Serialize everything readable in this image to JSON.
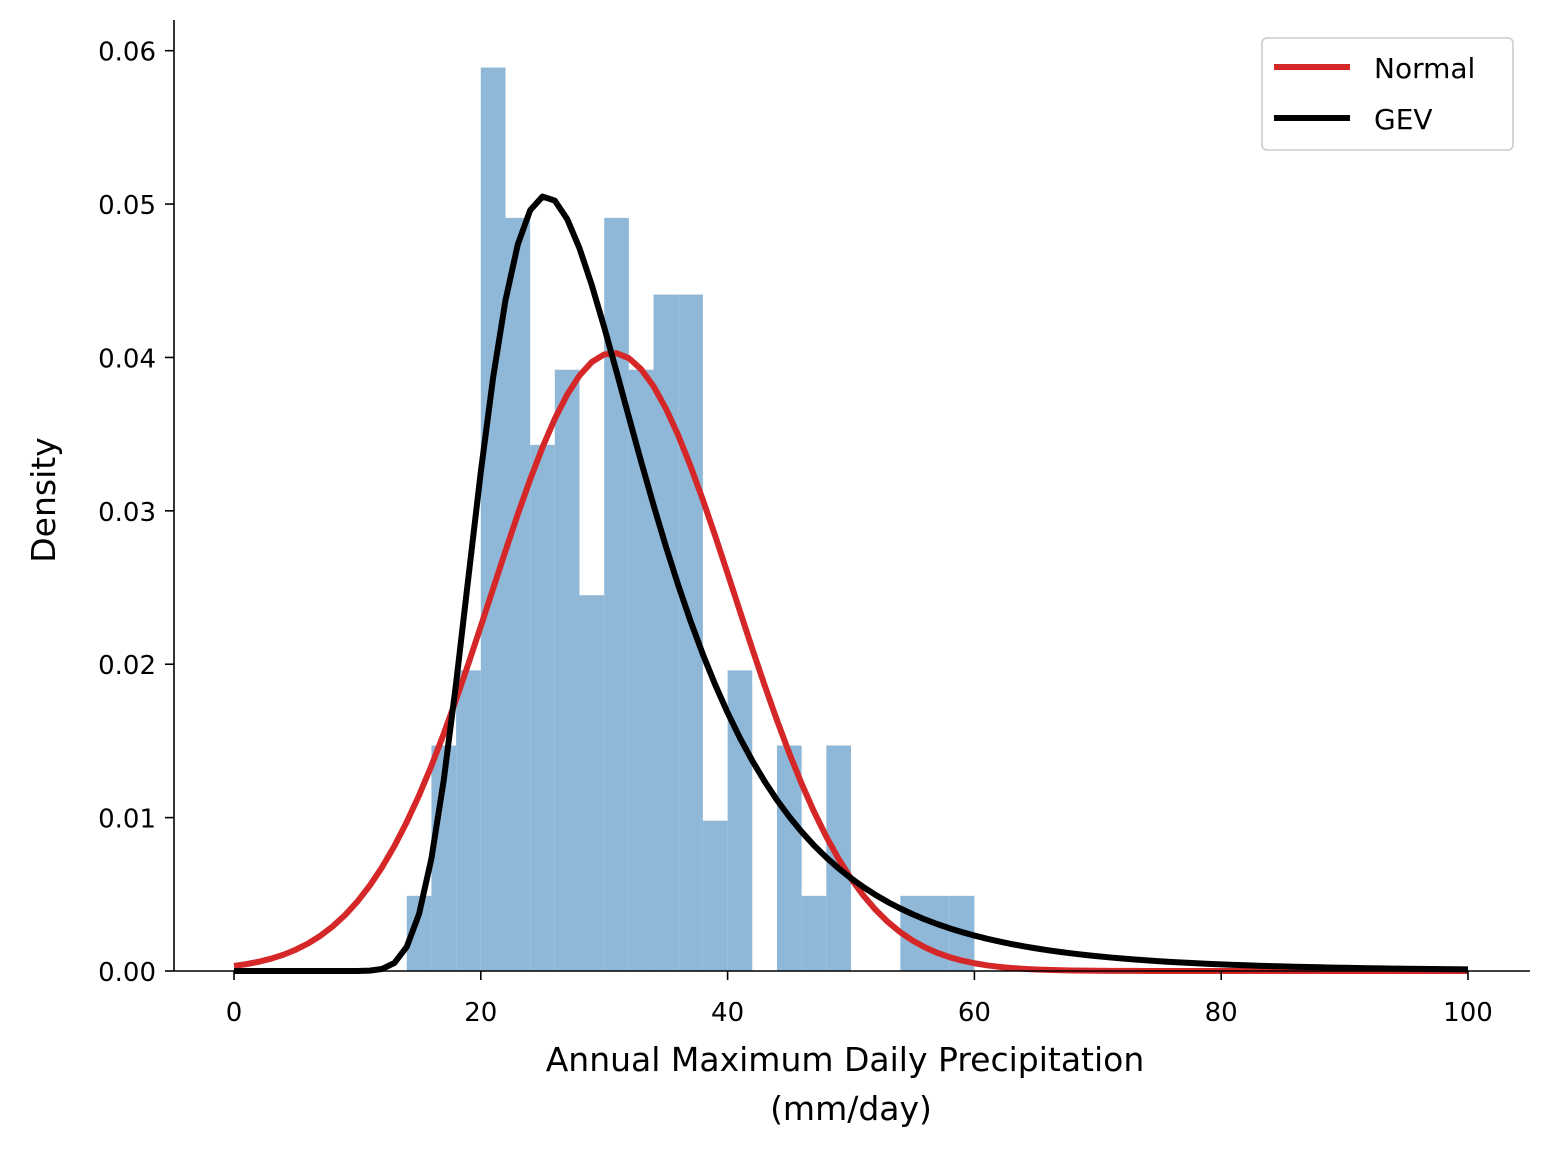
{
  "chart_data": {
    "type": "bar",
    "xlabel": "Annual Maximum Daily Precipitation\n(mm/day)",
    "ylabel": "Density",
    "xlim": [
      -5,
      105
    ],
    "ylim": [
      0,
      0.062
    ],
    "xticks": [
      0,
      20,
      40,
      60,
      80,
      100
    ],
    "yticks": [
      0.0,
      0.01,
      0.02,
      0.03,
      0.04,
      0.05,
      0.06
    ],
    "ytick_labels": [
      "0.00",
      "0.01",
      "0.02",
      "0.03",
      "0.04",
      "0.05",
      "0.06"
    ],
    "grid": false,
    "legend_position": "top-right",
    "histogram": {
      "color": "#8fb8d8",
      "bin_width": 2,
      "bins": [
        {
          "x0": 14,
          "value": 0.0049
        },
        {
          "x0": 16,
          "value": 0.0147
        },
        {
          "x0": 18,
          "value": 0.0196
        },
        {
          "x0": 20,
          "value": 0.0589
        },
        {
          "x0": 22,
          "value": 0.0491
        },
        {
          "x0": 24,
          "value": 0.0343
        },
        {
          "x0": 26,
          "value": 0.0392
        },
        {
          "x0": 28,
          "value": 0.0245
        },
        {
          "x0": 30,
          "value": 0.0491
        },
        {
          "x0": 32,
          "value": 0.0392
        },
        {
          "x0": 34,
          "value": 0.0441
        },
        {
          "x0": 36,
          "value": 0.0441
        },
        {
          "x0": 38,
          "value": 0.0098
        },
        {
          "x0": 40,
          "value": 0.0196
        },
        {
          "x0": 42,
          "value": 0.0
        },
        {
          "x0": 44,
          "value": 0.0147
        },
        {
          "x0": 46,
          "value": 0.0049
        },
        {
          "x0": 48,
          "value": 0.0147
        },
        {
          "x0": 50,
          "value": 0.0
        },
        {
          "x0": 52,
          "value": 0.0
        },
        {
          "x0": 54,
          "value": 0.0049
        },
        {
          "x0": 56,
          "value": 0.0049
        },
        {
          "x0": 58,
          "value": 0.0049
        }
      ]
    },
    "series": [
      {
        "name": "Normal",
        "color": "#d62728",
        "kind": "normal",
        "mu": 30.7,
        "sigma": 9.9
      },
      {
        "name": "GEV",
        "color": "#000000",
        "kind": "gev",
        "mu": 26.2,
        "sigma": 7.35,
        "xi": 0.14
      }
    ],
    "curve_x_range": [
      0,
      100
    ]
  },
  "legend": {
    "items": [
      {
        "label": "Normal",
        "color": "#d62728"
      },
      {
        "label": "GEV",
        "color": "#000000"
      }
    ]
  }
}
